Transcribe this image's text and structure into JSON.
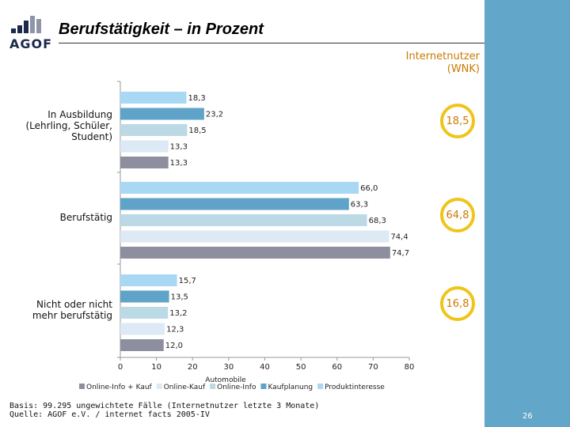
{
  "header": {
    "logo_text": "AGOF",
    "title": "Berufstätigkeit – in Prozent"
  },
  "wnk": {
    "label_line1": "Internetnutzer",
    "label_line2": "(WNK)",
    "values": [
      "18,5",
      "64,8",
      "16,8"
    ]
  },
  "chart_data": {
    "type": "bar",
    "orientation": "horizontal",
    "categories": [
      [
        "In Ausbildung",
        "(Lehrling, Schüler,",
        "Student)"
      ],
      [
        "Berufstätig"
      ],
      [
        "Nicht oder nicht",
        "mehr berufstätig"
      ]
    ],
    "series": [
      {
        "name": "Produktinteresse",
        "color": "#a9d8f5",
        "values": [
          18.3,
          66.0,
          15.7
        ]
      },
      {
        "name": "Kaufplanung",
        "color": "#5fa3c8",
        "values": [
          23.2,
          63.3,
          13.5
        ]
      },
      {
        "name": "Online-Info",
        "color": "#bcd9e6",
        "values": [
          18.5,
          68.3,
          13.2
        ]
      },
      {
        "name": "Online-Kauf",
        "color": "#dde9f4",
        "values": [
          13.3,
          74.4,
          12.3
        ]
      },
      {
        "name": "Online-Info + Kauf",
        "color": "#8e8f9e",
        "values": [
          13.3,
          74.7,
          12.0
        ]
      }
    ],
    "data_labels": [
      [
        "18,3",
        "23,2",
        "18,5",
        "13,3",
        "13,3"
      ],
      [
        "66,0",
        "63,3",
        "68,3",
        "74,4",
        "74,7"
      ],
      [
        "15,7",
        "13,5",
        "13,2",
        "12,3",
        "12,0"
      ]
    ],
    "xlim": [
      0,
      80
    ],
    "xticks": [
      "0",
      "10",
      "20",
      "30",
      "40",
      "50",
      "60",
      "70",
      "80"
    ],
    "xlabel": "Automobile",
    "legend_order": [
      "Online-Info + Kauf",
      "Online-Kauf",
      "Online-Info",
      "Kaufplanung",
      "Produktinteresse"
    ],
    "legend_position": "bottom"
  },
  "footer": {
    "basis": "Basis: 99.295 ungewichtete Fälle (Internetnutzer letzte 3 Monate)",
    "source": "Quelle: AGOF e.V. / internet facts 2005-IV",
    "page_number": "26"
  }
}
